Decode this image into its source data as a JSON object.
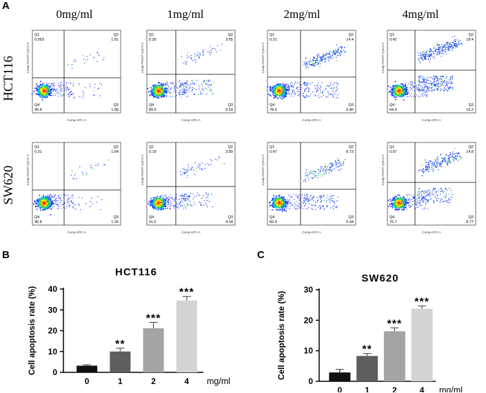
{
  "panels": {
    "a": "A",
    "b": "B",
    "c": "C"
  },
  "flow": {
    "dose_titles": [
      "0mg/ml",
      "1mg/ml",
      "2mg/ml",
      "4mg/ml"
    ],
    "row_labels": [
      "HCT116",
      "SW620"
    ],
    "x_axis_label": "Comp-APC-A",
    "y_axis_label": "Comp-PerCP-Cy5-5-A",
    "quadrant_names": [
      "Q1",
      "Q2",
      "Q3",
      "Q4"
    ],
    "plots": [
      {
        "line": "HCT116",
        "dose": "0mg/ml",
        "q1": "0.093",
        "q2": "1.81",
        "q3": "1.68",
        "q4": "96.4"
      },
      {
        "line": "HCT116",
        "dose": "1mg/ml",
        "q1": "0.30",
        "q2": "3.65",
        "q3": "6.59",
        "q4": "89.5"
      },
      {
        "line": "HCT116",
        "dose": "2mg/ml",
        "q1": "0.21",
        "q2": "14.4",
        "q3": "6.80",
        "q4": "78.6"
      },
      {
        "line": "HCT116",
        "dose": "4mg/ml",
        "q1": "0.42",
        "q2": "18.4",
        "q3": "16.2",
        "q4": "64.9"
      },
      {
        "line": "SW620",
        "dose": "0mg/ml",
        "q1": "0.31",
        "q2": "1.64",
        "q3": "1.26",
        "q4": "96.8"
      },
      {
        "line": "SW620",
        "dose": "1mg/ml",
        "q1": "0.19",
        "q2": "3.89",
        "q3": "4.34",
        "q4": "91.6"
      },
      {
        "line": "SW620",
        "dose": "2mg/ml",
        "q1": "0.47",
        "q2": "8.73",
        "q3": "6.94",
        "q4": "83.9"
      },
      {
        "line": "SW620",
        "dose": "4mg/ml",
        "q1": "0.67",
        "q2": "14.8",
        "q3": "8.77",
        "q4": "75.7"
      }
    ]
  },
  "chart_data": [
    {
      "type": "bar",
      "title": "HCT116",
      "ylabel": "Cell apoptosis rate (%)",
      "xlabel": "mg/ml",
      "categories": [
        "0",
        "1",
        "2",
        "4"
      ],
      "values": [
        3.2,
        10.0,
        21.2,
        34.5
      ],
      "errors": [
        0.4,
        1.6,
        2.8,
        2.0
      ],
      "significance": [
        "",
        "**",
        "***",
        "***"
      ],
      "bar_colors": [
        "#111111",
        "#5e5e5e",
        "#a4a4a4",
        "#d3d3d3"
      ],
      "ylim": [
        0,
        40
      ],
      "yticks": [
        0,
        10,
        20,
        30,
        40
      ]
    },
    {
      "type": "bar",
      "title": "SW620",
      "ylabel": "Cell apoptosis rate (%)",
      "xlabel": "mg/ml",
      "categories": [
        "0",
        "1",
        "2",
        "4"
      ],
      "values": [
        2.9,
        8.3,
        16.4,
        23.8
      ],
      "errors": [
        1.0,
        0.8,
        1.1,
        0.9
      ],
      "significance": [
        "",
        "**",
        "***",
        "***"
      ],
      "bar_colors": [
        "#111111",
        "#5e5e5e",
        "#a4a4a4",
        "#d3d3d3"
      ],
      "ylim": [
        0,
        30
      ],
      "yticks": [
        0,
        10,
        20,
        30
      ]
    }
  ]
}
